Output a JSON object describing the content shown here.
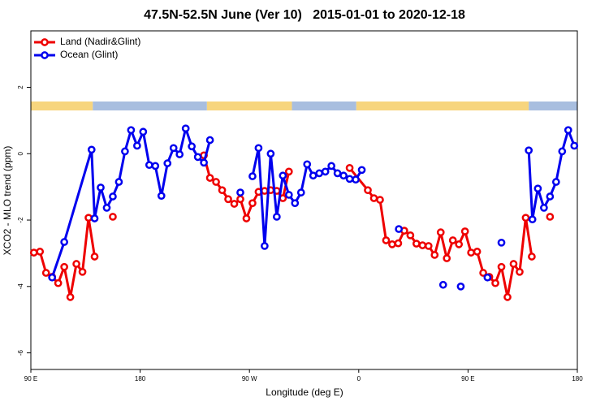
{
  "chart_data": {
    "type": "line",
    "title": "47.5N-52.5N June (Ver 10)   2015-01-01 to 2020-12-18",
    "xlabel": "Longitude (deg E)",
    "ylabel": "XCO2 - MLO trend (ppm)",
    "xlim": [
      90,
      540
    ],
    "ylim": [
      -6.5,
      3.7
    ],
    "xticks": [
      {
        "value": 90,
        "label": "90 E"
      },
      180,
      {
        "value": 270,
        "label": "90 W"
      },
      {
        "value": 360,
        "label": "0"
      },
      {
        "value": 450,
        "label": "90 E"
      },
      {
        "value": 540,
        "label": "180"
      }
    ],
    "yticks": [
      -6,
      -4,
      -2,
      0,
      2
    ],
    "legend": "top-left",
    "surface_bands": [
      {
        "from": 90,
        "to": 141,
        "color": "#f7d57e"
      },
      {
        "from": 141,
        "to": 235,
        "color": "#a8bedf"
      },
      {
        "from": 235,
        "to": 305,
        "color": "#f7d57e"
      },
      {
        "from": 305,
        "to": 358,
        "color": "#a8bedf"
      },
      {
        "from": 358,
        "to": 500,
        "color": "#f7d57e"
      },
      {
        "from": 500,
        "to": 540,
        "color": "#a8bedf"
      }
    ],
    "series": [
      {
        "name": "Land (Nadir&Glint)",
        "color": "#ee0000",
        "x": [
          92.5,
          97.5,
          102.5,
          107.5,
          112.5,
          117.5,
          122.5,
          127.5,
          132.5,
          137.5,
          142.5,
          null,
          157.5,
          null,
          232.5,
          237.5,
          242.5,
          247.5,
          252.5,
          257.5,
          262.5,
          267.5,
          272.5,
          277.5,
          282.5,
          287.5,
          292.5,
          297.5,
          302.5,
          null,
          352.5,
          367.5,
          372.5,
          377.5,
          382.5,
          387.5,
          392.5,
          397.5,
          402.5,
          407.5,
          412.5,
          417.5,
          422.5,
          427.5,
          432.5,
          437.5,
          442.5,
          447.5,
          452.5,
          457.5,
          462.5,
          467.5,
          472.5,
          477.5,
          482.5,
          487.5,
          492.5,
          497.5,
          502.5,
          null,
          517.5
        ],
        "values": [
          -2.98,
          -2.95,
          -3.59,
          -3.71,
          -3.9,
          -3.41,
          -4.32,
          -3.32,
          -3.56,
          -1.93,
          -3.1,
          null,
          -1.9,
          null,
          -0.05,
          -0.73,
          -0.85,
          -1.1,
          -1.37,
          -1.51,
          -1.37,
          -1.95,
          -1.49,
          -1.15,
          -1.12,
          -1.1,
          -1.12,
          -1.34,
          -0.54,
          null,
          -0.43,
          -1.1,
          -1.34,
          -1.39,
          -2.61,
          -2.73,
          -2.7,
          -2.32,
          -2.46,
          -2.71,
          -2.76,
          -2.78,
          -3.05,
          -2.37,
          -3.15,
          -2.61,
          -2.73,
          -2.34,
          -2.98,
          -2.95,
          -3.59,
          -3.71,
          -3.9,
          -3.41,
          -4.32,
          -3.32,
          -3.56,
          -1.93,
          -3.1,
          null,
          -1.9
        ]
      },
      {
        "name": "Ocean (Glint)",
        "color": "#0000ee",
        "x": [
          107.5,
          117.5,
          140,
          142.5,
          147.5,
          152.5,
          157.5,
          162.5,
          167.5,
          172.5,
          177.5,
          182.5,
          187.5,
          192.5,
          197.5,
          202.5,
          207.5,
          212.5,
          217.5,
          222.5,
          227.5,
          232.5,
          237.5,
          null,
          262.5,
          null,
          272.5,
          277.5,
          282.5,
          287.5,
          292.5,
          297.5,
          302.5,
          307.5,
          312.5,
          317.5,
          322.5,
          327.5,
          332.5,
          337.5,
          342.5,
          347.5,
          352.5,
          357.5,
          362.5,
          null,
          393,
          null,
          429.5,
          null,
          444,
          null,
          466,
          null,
          477.5,
          null,
          500,
          503,
          507.5,
          512.5,
          517.5,
          522.5,
          527.5,
          532.5,
          537.5
        ],
        "values": [
          -3.73,
          -2.66,
          0.12,
          -1.95,
          -1.02,
          -1.63,
          -1.29,
          -0.85,
          0.07,
          0.71,
          0.24,
          0.66,
          -0.34,
          -0.37,
          -1.27,
          -0.29,
          0.17,
          -0.02,
          0.76,
          0.22,
          -0.1,
          -0.27,
          0.41,
          null,
          -1.17,
          null,
          -0.68,
          0.17,
          -2.78,
          0.0,
          -1.9,
          -0.66,
          -1.24,
          -1.49,
          -1.17,
          -0.32,
          -0.66,
          -0.59,
          -0.54,
          -0.37,
          -0.59,
          -0.66,
          -0.76,
          -0.78,
          -0.49,
          null,
          -2.27,
          null,
          -3.95,
          null,
          -4.0,
          null,
          -3.73,
          null,
          -2.68,
          null,
          0.1,
          -1.98,
          -1.05,
          -1.63,
          -1.29,
          -0.85,
          0.07,
          0.71,
          0.24
        ]
      }
    ]
  }
}
